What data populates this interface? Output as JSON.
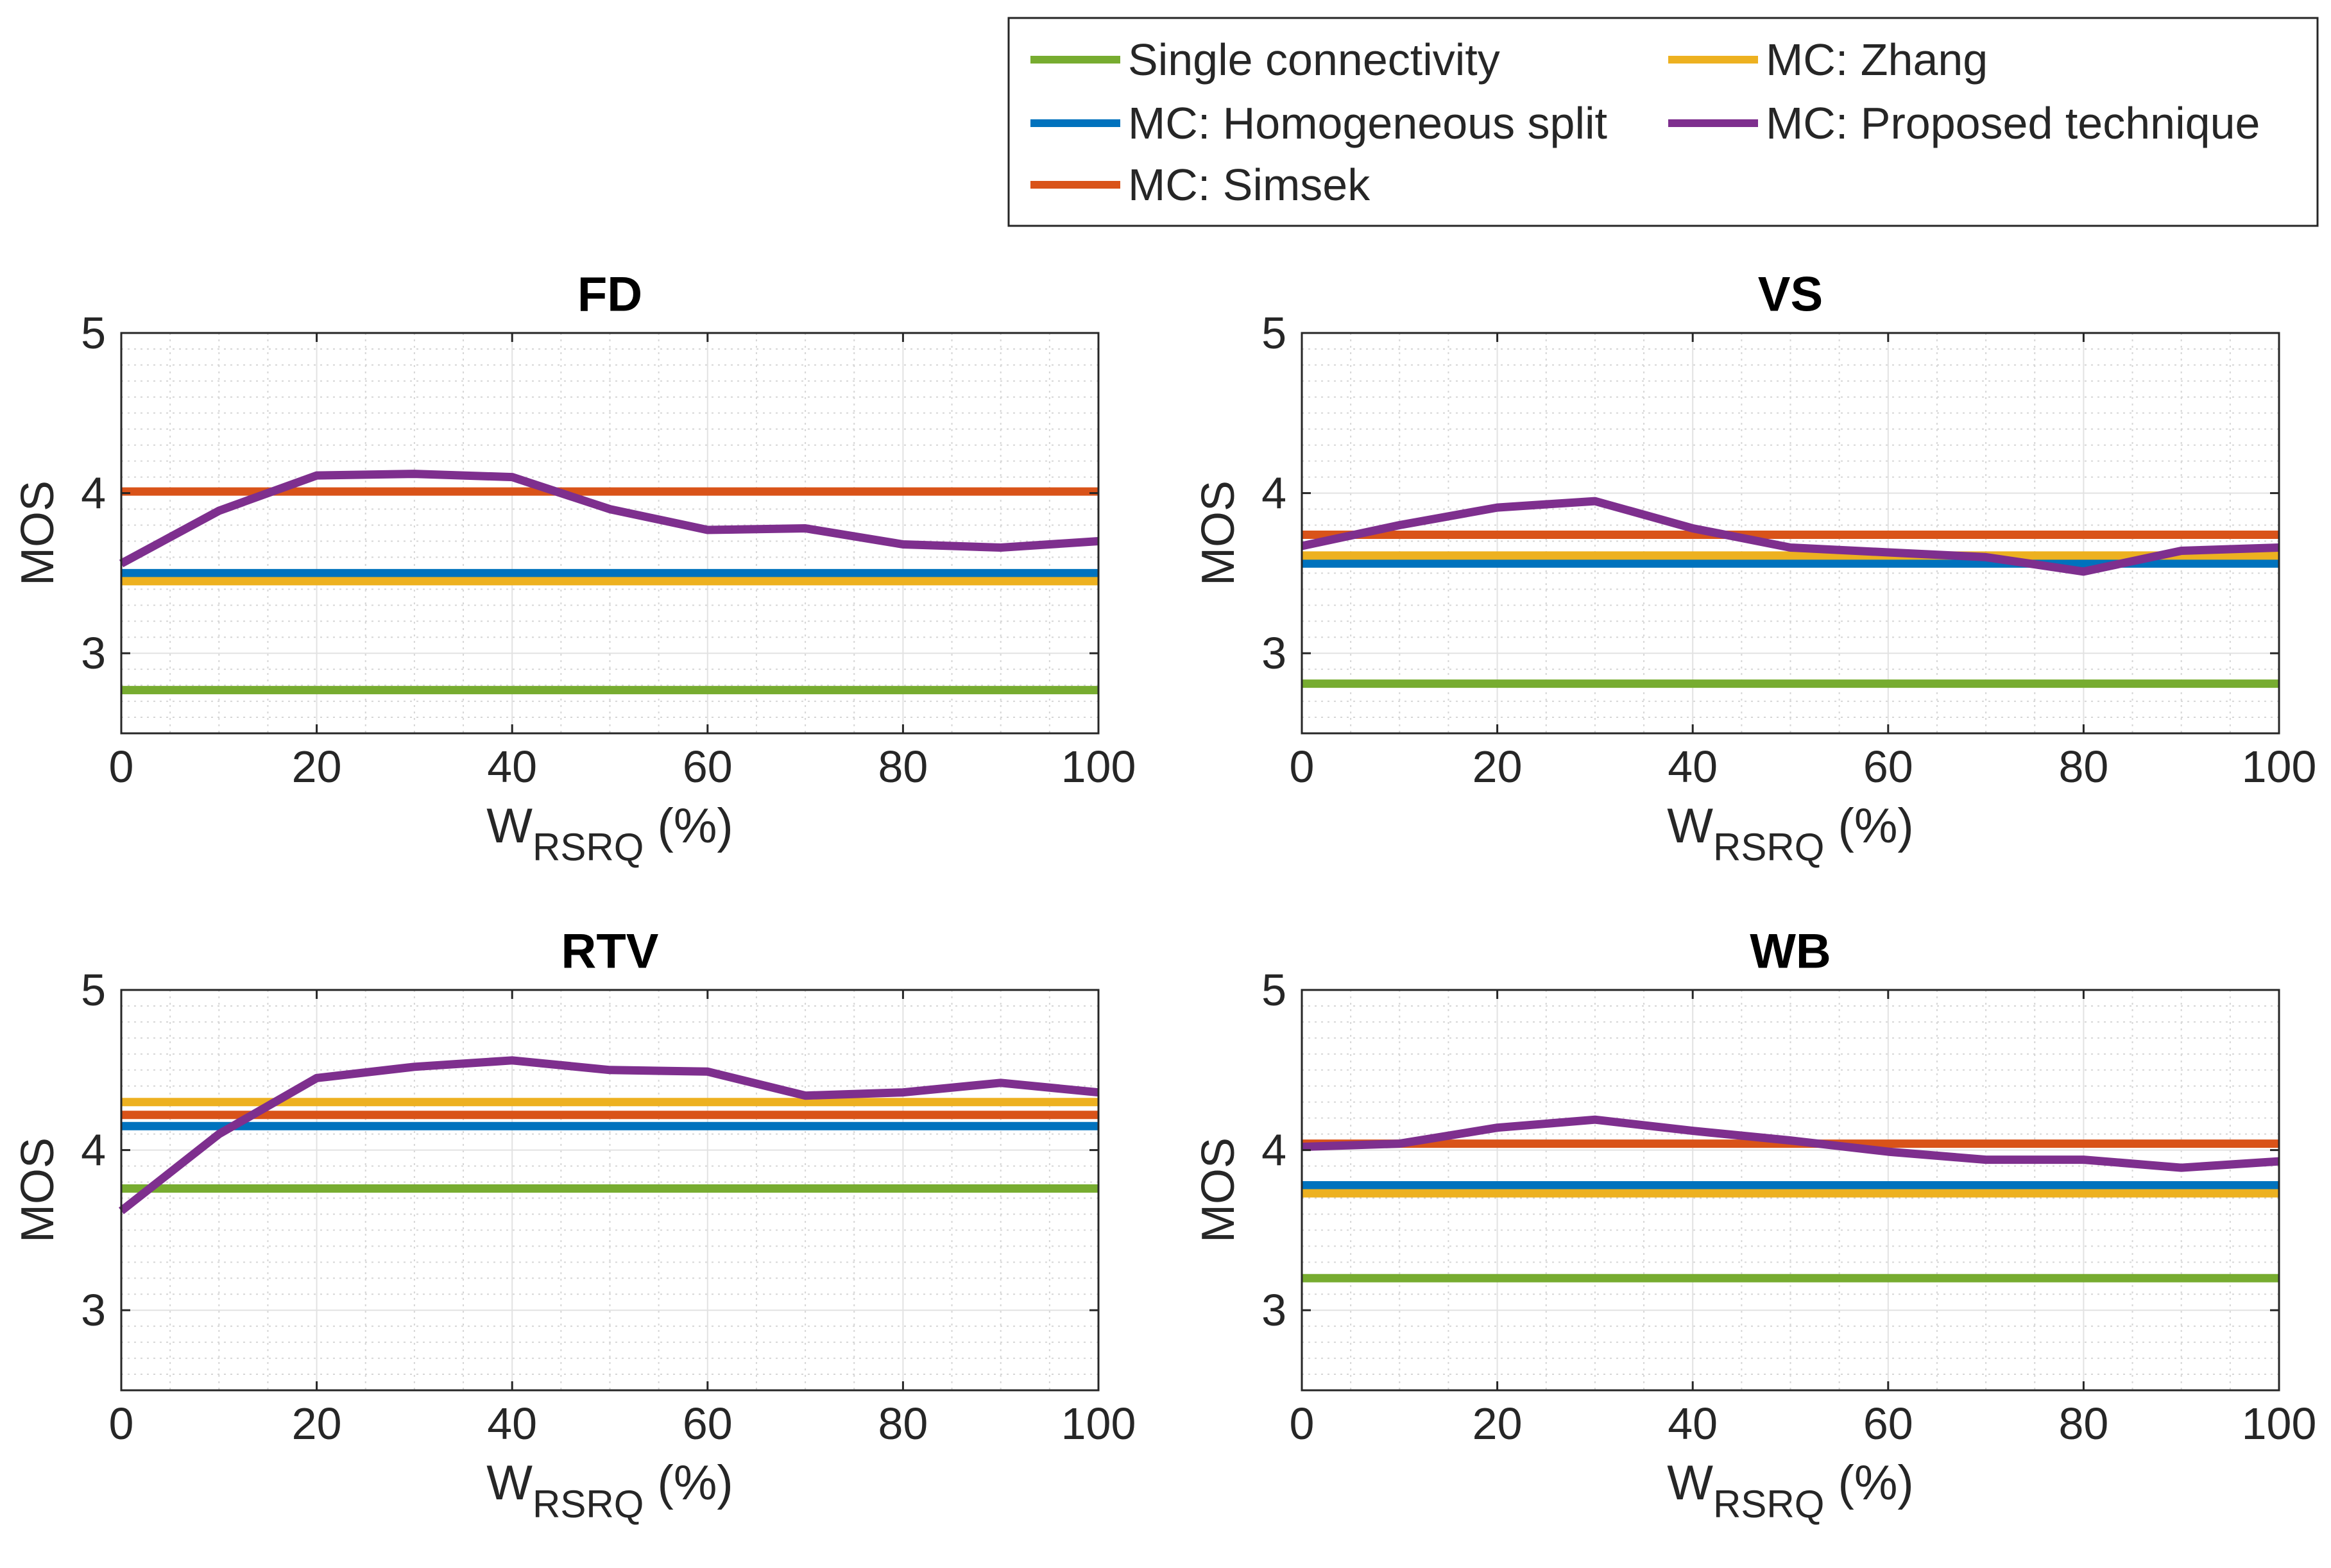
{
  "legend": {
    "entries": [
      {
        "label": "Single connectivity",
        "color": "#77AC30"
      },
      {
        "label": "MC: Homogeneous split",
        "color": "#0072BD"
      },
      {
        "label": "MC: Simsek",
        "color": "#D95319"
      },
      {
        "label": "MC: Zhang",
        "color": "#EDB120"
      },
      {
        "label": "MC: Proposed technique",
        "color": "#7E2F8E"
      }
    ]
  },
  "chart_data": [
    {
      "type": "line",
      "title": "FD",
      "xlabel": "W",
      "xlabel_sub": "RSRQ",
      "xlabel_suffix": " (%)",
      "ylabel": "MOS",
      "xlim": [
        0,
        100
      ],
      "ylim": [
        2.5,
        5
      ],
      "xticks": [
        "0",
        "20",
        "40",
        "60",
        "80",
        "100"
      ],
      "yticks": [
        "3",
        "4",
        "5"
      ],
      "grid": true,
      "x": [
        0,
        10,
        20,
        30,
        40,
        50,
        60,
        70,
        80,
        90,
        100
      ],
      "series": [
        {
          "name": "Single connectivity",
          "values": [
            2.77,
            2.77,
            2.77,
            2.77,
            2.77,
            2.77,
            2.77,
            2.77,
            2.77,
            2.77,
            2.77
          ]
        },
        {
          "name": "MC: Homogeneous split",
          "values": [
            3.5,
            3.5,
            3.5,
            3.5,
            3.5,
            3.5,
            3.5,
            3.5,
            3.5,
            3.5,
            3.5
          ]
        },
        {
          "name": "MC: Simsek",
          "values": [
            4.01,
            4.01,
            4.01,
            4.01,
            4.01,
            4.01,
            4.01,
            4.01,
            4.01,
            4.01,
            4.01
          ]
        },
        {
          "name": "MC: Zhang",
          "values": [
            3.45,
            3.45,
            3.45,
            3.45,
            3.45,
            3.45,
            3.45,
            3.45,
            3.45,
            3.45,
            3.45
          ]
        },
        {
          "name": "MC: Proposed technique",
          "values": [
            3.56,
            3.89,
            4.11,
            4.12,
            4.1,
            3.9,
            3.77,
            3.78,
            3.68,
            3.66,
            3.7
          ]
        }
      ]
    },
    {
      "type": "line",
      "title": "VS",
      "xlabel": "W",
      "xlabel_sub": "RSRQ",
      "xlabel_suffix": " (%)",
      "ylabel": "MOS",
      "xlim": [
        0,
        100
      ],
      "ylim": [
        2.5,
        5
      ],
      "xticks": [
        "0",
        "20",
        "40",
        "60",
        "80",
        "100"
      ],
      "yticks": [
        "3",
        "4",
        "5"
      ],
      "grid": true,
      "x": [
        0,
        10,
        20,
        30,
        40,
        50,
        60,
        70,
        80,
        90,
        100
      ],
      "series": [
        {
          "name": "Single connectivity",
          "values": [
            2.81,
            2.81,
            2.81,
            2.81,
            2.81,
            2.81,
            2.81,
            2.81,
            2.81,
            2.81,
            2.81
          ]
        },
        {
          "name": "MC: Homogeneous split",
          "values": [
            3.56,
            3.56,
            3.56,
            3.56,
            3.56,
            3.56,
            3.56,
            3.56,
            3.56,
            3.56,
            3.56
          ]
        },
        {
          "name": "MC: Simsek",
          "values": [
            3.74,
            3.74,
            3.74,
            3.74,
            3.74,
            3.74,
            3.74,
            3.74,
            3.74,
            3.74,
            3.74
          ]
        },
        {
          "name": "MC: Zhang",
          "values": [
            3.61,
            3.61,
            3.61,
            3.61,
            3.61,
            3.61,
            3.61,
            3.61,
            3.61,
            3.61,
            3.61
          ]
        },
        {
          "name": "MC: Proposed technique",
          "values": [
            3.67,
            3.8,
            3.91,
            3.95,
            3.78,
            3.66,
            3.63,
            3.6,
            3.51,
            3.64,
            3.66
          ]
        }
      ]
    },
    {
      "type": "line",
      "title": "RTV",
      "xlabel": "W",
      "xlabel_sub": "RSRQ",
      "xlabel_suffix": " (%)",
      "ylabel": "MOS",
      "xlim": [
        0,
        100
      ],
      "ylim": [
        2.5,
        5
      ],
      "xticks": [
        "0",
        "20",
        "40",
        "60",
        "80",
        "100"
      ],
      "yticks": [
        "3",
        "4",
        "5"
      ],
      "grid": true,
      "x": [
        0,
        10,
        20,
        30,
        40,
        50,
        60,
        70,
        80,
        90,
        100
      ],
      "series": [
        {
          "name": "Single connectivity",
          "values": [
            3.76,
            3.76,
            3.76,
            3.76,
            3.76,
            3.76,
            3.76,
            3.76,
            3.76,
            3.76,
            3.76
          ]
        },
        {
          "name": "MC: Homogeneous split",
          "values": [
            4.15,
            4.15,
            4.15,
            4.15,
            4.15,
            4.15,
            4.15,
            4.15,
            4.15,
            4.15,
            4.15
          ]
        },
        {
          "name": "MC: Simsek",
          "values": [
            4.22,
            4.22,
            4.22,
            4.22,
            4.22,
            4.22,
            4.22,
            4.22,
            4.22,
            4.22,
            4.22
          ]
        },
        {
          "name": "MC: Zhang",
          "values": [
            4.3,
            4.3,
            4.3,
            4.3,
            4.3,
            4.3,
            4.3,
            4.3,
            4.3,
            4.3,
            4.3
          ]
        },
        {
          "name": "MC: Proposed technique",
          "values": [
            3.62,
            4.1,
            4.45,
            4.52,
            4.56,
            4.5,
            4.49,
            4.34,
            4.36,
            4.42,
            4.36
          ]
        }
      ]
    },
    {
      "type": "line",
      "title": "WB",
      "xlabel": "W",
      "xlabel_sub": "RSRQ",
      "xlabel_suffix": " (%)",
      "ylabel": "MOS",
      "xlim": [
        0,
        100
      ],
      "ylim": [
        2.5,
        5
      ],
      "xticks": [
        "0",
        "20",
        "40",
        "60",
        "80",
        "100"
      ],
      "yticks": [
        "3",
        "4",
        "5"
      ],
      "grid": true,
      "x": [
        0,
        10,
        20,
        30,
        40,
        50,
        60,
        70,
        80,
        90,
        100
      ],
      "series": [
        {
          "name": "Single connectivity",
          "values": [
            3.2,
            3.2,
            3.2,
            3.2,
            3.2,
            3.2,
            3.2,
            3.2,
            3.2,
            3.2,
            3.2
          ]
        },
        {
          "name": "MC: Homogeneous split",
          "values": [
            3.78,
            3.78,
            3.78,
            3.78,
            3.78,
            3.78,
            3.78,
            3.78,
            3.78,
            3.78,
            3.78
          ]
        },
        {
          "name": "MC: Simsek",
          "values": [
            4.04,
            4.04,
            4.04,
            4.04,
            4.04,
            4.04,
            4.04,
            4.04,
            4.04,
            4.04,
            4.04
          ]
        },
        {
          "name": "MC: Zhang",
          "values": [
            3.73,
            3.73,
            3.73,
            3.73,
            3.73,
            3.73,
            3.73,
            3.73,
            3.73,
            3.73,
            3.73
          ]
        },
        {
          "name": "MC: Proposed technique",
          "values": [
            4.02,
            4.04,
            4.14,
            4.19,
            4.12,
            4.06,
            3.99,
            3.94,
            3.94,
            3.89,
            3.93
          ]
        }
      ]
    }
  ]
}
